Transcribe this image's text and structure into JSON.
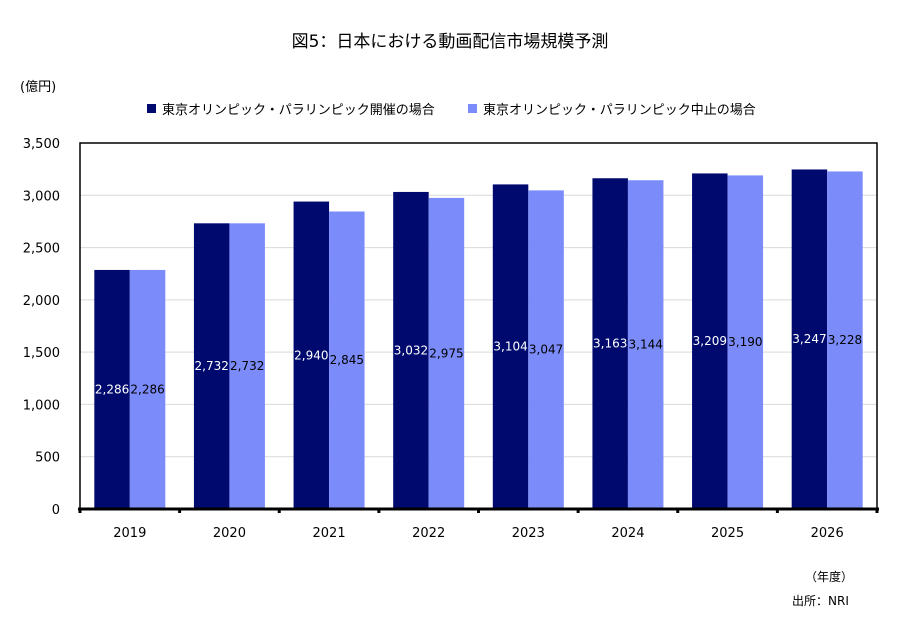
{
  "page": {
    "title": "図5：日本における動画配信市場規模予測",
    "unit_label": "(億円)",
    "year_unit_label": "（年度）",
    "source_label": "出所：NRI"
  },
  "chart_data": {
    "type": "bar",
    "title": "図5：日本における動画配信市場規模予測",
    "xlabel": "（年度）",
    "ylabel": "(億円)",
    "ylim": [
      0,
      3500
    ],
    "yticks": [
      0,
      500,
      1000,
      1500,
      2000,
      2500,
      3000,
      3500
    ],
    "ytick_labels": [
      "0",
      "500",
      "1,000",
      "1,500",
      "2,000",
      "2,500",
      "3,000",
      "3,500"
    ],
    "grid": true,
    "legend_position": "top",
    "categories": [
      "2019",
      "2020",
      "2021",
      "2022",
      "2023",
      "2024",
      "2025",
      "2026"
    ],
    "series": [
      {
        "name": "東京オリンピック・パラリンピック開催の場合",
        "color": "#000a6e",
        "label_color": "#ffffff",
        "values": [
          2286,
          2732,
          2940,
          3032,
          3104,
          3163,
          3209,
          3247
        ],
        "labels": [
          "2,286",
          "2,732",
          "2,940",
          "3,032",
          "3,104",
          "3,163",
          "3,209",
          "3,247"
        ]
      },
      {
        "name": "東京オリンピック・パラリンピック中止の場合",
        "color": "#7b8cfa",
        "label_color": "#000000",
        "values": [
          2286,
          2732,
          2845,
          2975,
          3047,
          3144,
          3190,
          3228
        ],
        "labels": [
          "2,286",
          "2,732",
          "2,845",
          "2,975",
          "3,047",
          "3,144",
          "3,190",
          "3,228"
        ]
      }
    ]
  }
}
